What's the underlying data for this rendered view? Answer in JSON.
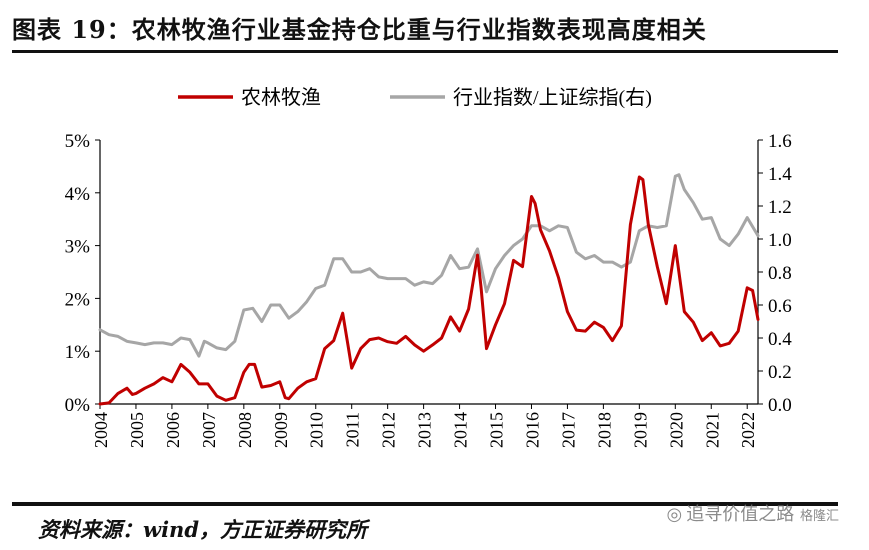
{
  "header": {
    "title": "图表 19：农林牧渔行业基金持仓比重与行业指数表现高度相关"
  },
  "footer": {
    "source": "资料来源：wind，方正证券研究所"
  },
  "watermark": {
    "text": "追寻价值之路",
    "sub": "格隆汇",
    "icon": "wechat-icon"
  },
  "colors": {
    "series_1": "#C00000",
    "series_2": "#A6A6A6"
  },
  "chart_data": {
    "type": "line",
    "title": "",
    "xlabel": "",
    "ylabel": "",
    "legend_position": "top",
    "grid": false,
    "x_ticks": [
      "2004",
      "2005",
      "2006",
      "2007",
      "2008",
      "2009",
      "2010",
      "2011",
      "2012",
      "2013",
      "2014",
      "2015",
      "2016",
      "2017",
      "2018",
      "2019",
      "2020",
      "2021",
      "2022"
    ],
    "x_range": [
      2004.0,
      2022.3
    ],
    "y_left": {
      "min": 0,
      "max": 5,
      "ticks": [
        "0%",
        "1%",
        "2%",
        "3%",
        "4%",
        "5%"
      ]
    },
    "y_right": {
      "min": 0,
      "max": 1.6,
      "ticks": [
        "0.0",
        "0.2",
        "0.4",
        "0.6",
        "0.8",
        "1.0",
        "1.2",
        "1.4",
        "1.6"
      ]
    },
    "series": [
      {
        "name": "农林牧渔",
        "axis": "left",
        "unit": "%",
        "x": [
          2004.0,
          2004.25,
          2004.5,
          2004.75,
          2004.9,
          2005.0,
          2005.25,
          2005.5,
          2005.75,
          2006.0,
          2006.1,
          2006.25,
          2006.5,
          2006.75,
          2007.0,
          2007.25,
          2007.5,
          2007.75,
          2008.0,
          2008.15,
          2008.3,
          2008.5,
          2008.75,
          2009.0,
          2009.15,
          2009.25,
          2009.5,
          2009.75,
          2010.0,
          2010.25,
          2010.5,
          2010.75,
          2010.9,
          2011.0,
          2011.25,
          2011.5,
          2011.75,
          2012.0,
          2012.25,
          2012.5,
          2012.75,
          2013.0,
          2013.25,
          2013.5,
          2013.75,
          2014.0,
          2014.25,
          2014.5,
          2014.6,
          2014.75,
          2015.0,
          2015.25,
          2015.5,
          2015.75,
          2016.0,
          2016.1,
          2016.25,
          2016.5,
          2016.75,
          2017.0,
          2017.25,
          2017.5,
          2017.75,
          2018.0,
          2018.25,
          2018.5,
          2018.75,
          2019.0,
          2019.1,
          2019.25,
          2019.5,
          2019.75,
          2020.0,
          2020.1,
          2020.25,
          2020.5,
          2020.75,
          2021.0,
          2021.25,
          2021.5,
          2021.75,
          2022.0,
          2022.15,
          2022.3
        ],
        "values": [
          0.0,
          0.02,
          0.2,
          0.3,
          0.18,
          0.2,
          0.3,
          0.38,
          0.5,
          0.42,
          0.55,
          0.75,
          0.6,
          0.38,
          0.38,
          0.15,
          0.07,
          0.12,
          0.6,
          0.75,
          0.75,
          0.32,
          0.35,
          0.42,
          0.12,
          0.1,
          0.3,
          0.42,
          0.48,
          1.05,
          1.2,
          1.72,
          1.1,
          0.68,
          1.05,
          1.22,
          1.25,
          1.18,
          1.15,
          1.28,
          1.12,
          1.0,
          1.12,
          1.25,
          1.65,
          1.38,
          1.8,
          2.82,
          2.2,
          1.05,
          1.5,
          1.9,
          2.72,
          2.6,
          3.93,
          3.8,
          3.3,
          2.9,
          2.4,
          1.75,
          1.4,
          1.38,
          1.55,
          1.45,
          1.2,
          1.48,
          3.4,
          4.3,
          4.25,
          3.4,
          2.6,
          1.9,
          3.0,
          2.5,
          1.75,
          1.55,
          1.2,
          1.35,
          1.1,
          1.15,
          1.38,
          2.2,
          2.15,
          1.6
        ]
      },
      {
        "name": "行业指数/上证综指(右)",
        "axis": "right",
        "unit": "ratio",
        "x": [
          2004.0,
          2004.25,
          2004.5,
          2004.75,
          2005.0,
          2005.25,
          2005.5,
          2005.75,
          2006.0,
          2006.25,
          2006.5,
          2006.75,
          2006.9,
          2007.0,
          2007.25,
          2007.5,
          2007.75,
          2008.0,
          2008.25,
          2008.5,
          2008.75,
          2009.0,
          2009.25,
          2009.5,
          2009.75,
          2010.0,
          2010.25,
          2010.5,
          2010.75,
          2011.0,
          2011.25,
          2011.5,
          2011.75,
          2012.0,
          2012.25,
          2012.5,
          2012.75,
          2013.0,
          2013.25,
          2013.5,
          2013.75,
          2014.0,
          2014.25,
          2014.5,
          2014.75,
          2015.0,
          2015.25,
          2015.5,
          2015.75,
          2016.0,
          2016.25,
          2016.5,
          2016.75,
          2017.0,
          2017.25,
          2017.5,
          2017.75,
          2018.0,
          2018.25,
          2018.5,
          2018.75,
          2019.0,
          2019.25,
          2019.5,
          2019.75,
          2020.0,
          2020.1,
          2020.25,
          2020.5,
          2020.75,
          2021.0,
          2021.25,
          2021.5,
          2021.75,
          2022.0,
          2022.3
        ],
        "values": [
          0.45,
          0.42,
          0.41,
          0.38,
          0.37,
          0.36,
          0.37,
          0.37,
          0.36,
          0.4,
          0.39,
          0.29,
          0.38,
          0.37,
          0.34,
          0.33,
          0.38,
          0.57,
          0.58,
          0.5,
          0.6,
          0.6,
          0.52,
          0.56,
          0.62,
          0.7,
          0.72,
          0.88,
          0.88,
          0.8,
          0.8,
          0.82,
          0.77,
          0.76,
          0.76,
          0.76,
          0.72,
          0.74,
          0.73,
          0.78,
          0.9,
          0.82,
          0.83,
          0.94,
          0.68,
          0.82,
          0.9,
          0.96,
          1.0,
          1.08,
          1.08,
          1.05,
          1.08,
          1.07,
          0.92,
          0.88,
          0.9,
          0.86,
          0.86,
          0.83,
          0.86,
          1.05,
          1.08,
          1.07,
          1.08,
          1.38,
          1.39,
          1.3,
          1.22,
          1.12,
          1.13,
          1.0,
          0.96,
          1.03,
          1.13,
          1.02
        ]
      }
    ]
  }
}
